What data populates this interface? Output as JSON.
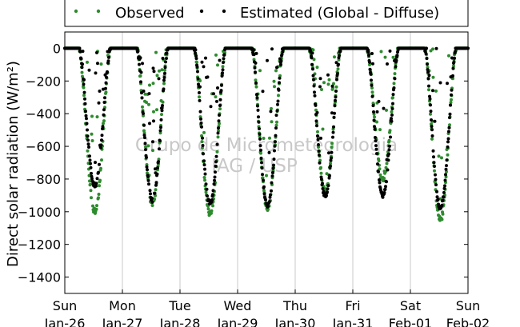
{
  "chart_data": {
    "type": "scatter",
    "ylabel": "Direct solar radiation (W/m²)",
    "ylim": [
      -1500,
      100
    ],
    "yticks": [
      0,
      -200,
      -400,
      -600,
      -800,
      -1000,
      -1200,
      -1400
    ],
    "xlim": [
      0,
      7
    ],
    "xticks": [
      {
        "day": "Sun",
        "date": "Jan-26"
      },
      {
        "day": "Mon",
        "date": "Jan-27"
      },
      {
        "day": "Tue",
        "date": "Jan-28"
      },
      {
        "day": "Wed",
        "date": "Jan-29"
      },
      {
        "day": "Thu",
        "date": "Jan-30"
      },
      {
        "day": "Fri",
        "date": "Jan-31"
      },
      {
        "day": "Sat",
        "date": "Feb-01"
      },
      {
        "day": "Sun",
        "date": "Feb-02"
      }
    ],
    "grid": "vertical",
    "legend_placement": "top",
    "watermark": [
      "Grupo de Micrometeorologia",
      "IAG / USP"
    ],
    "series": [
      {
        "name": "Observed",
        "color": "#2e8b2e",
        "marker": "dot"
      },
      {
        "name": "Estimated (Global - Diffuse)",
        "color": "#000000",
        "marker": "dot"
      }
    ],
    "daily_minimum": {
      "observed": [
        -1000,
        -950,
        -1010,
        -980,
        -880,
        -800,
        -1050
      ],
      "estimated": [
        -840,
        -930,
        -950,
        -960,
        -900,
        -900,
        -980
      ]
    },
    "daylight_hours_local": [
      6,
      19
    ]
  }
}
